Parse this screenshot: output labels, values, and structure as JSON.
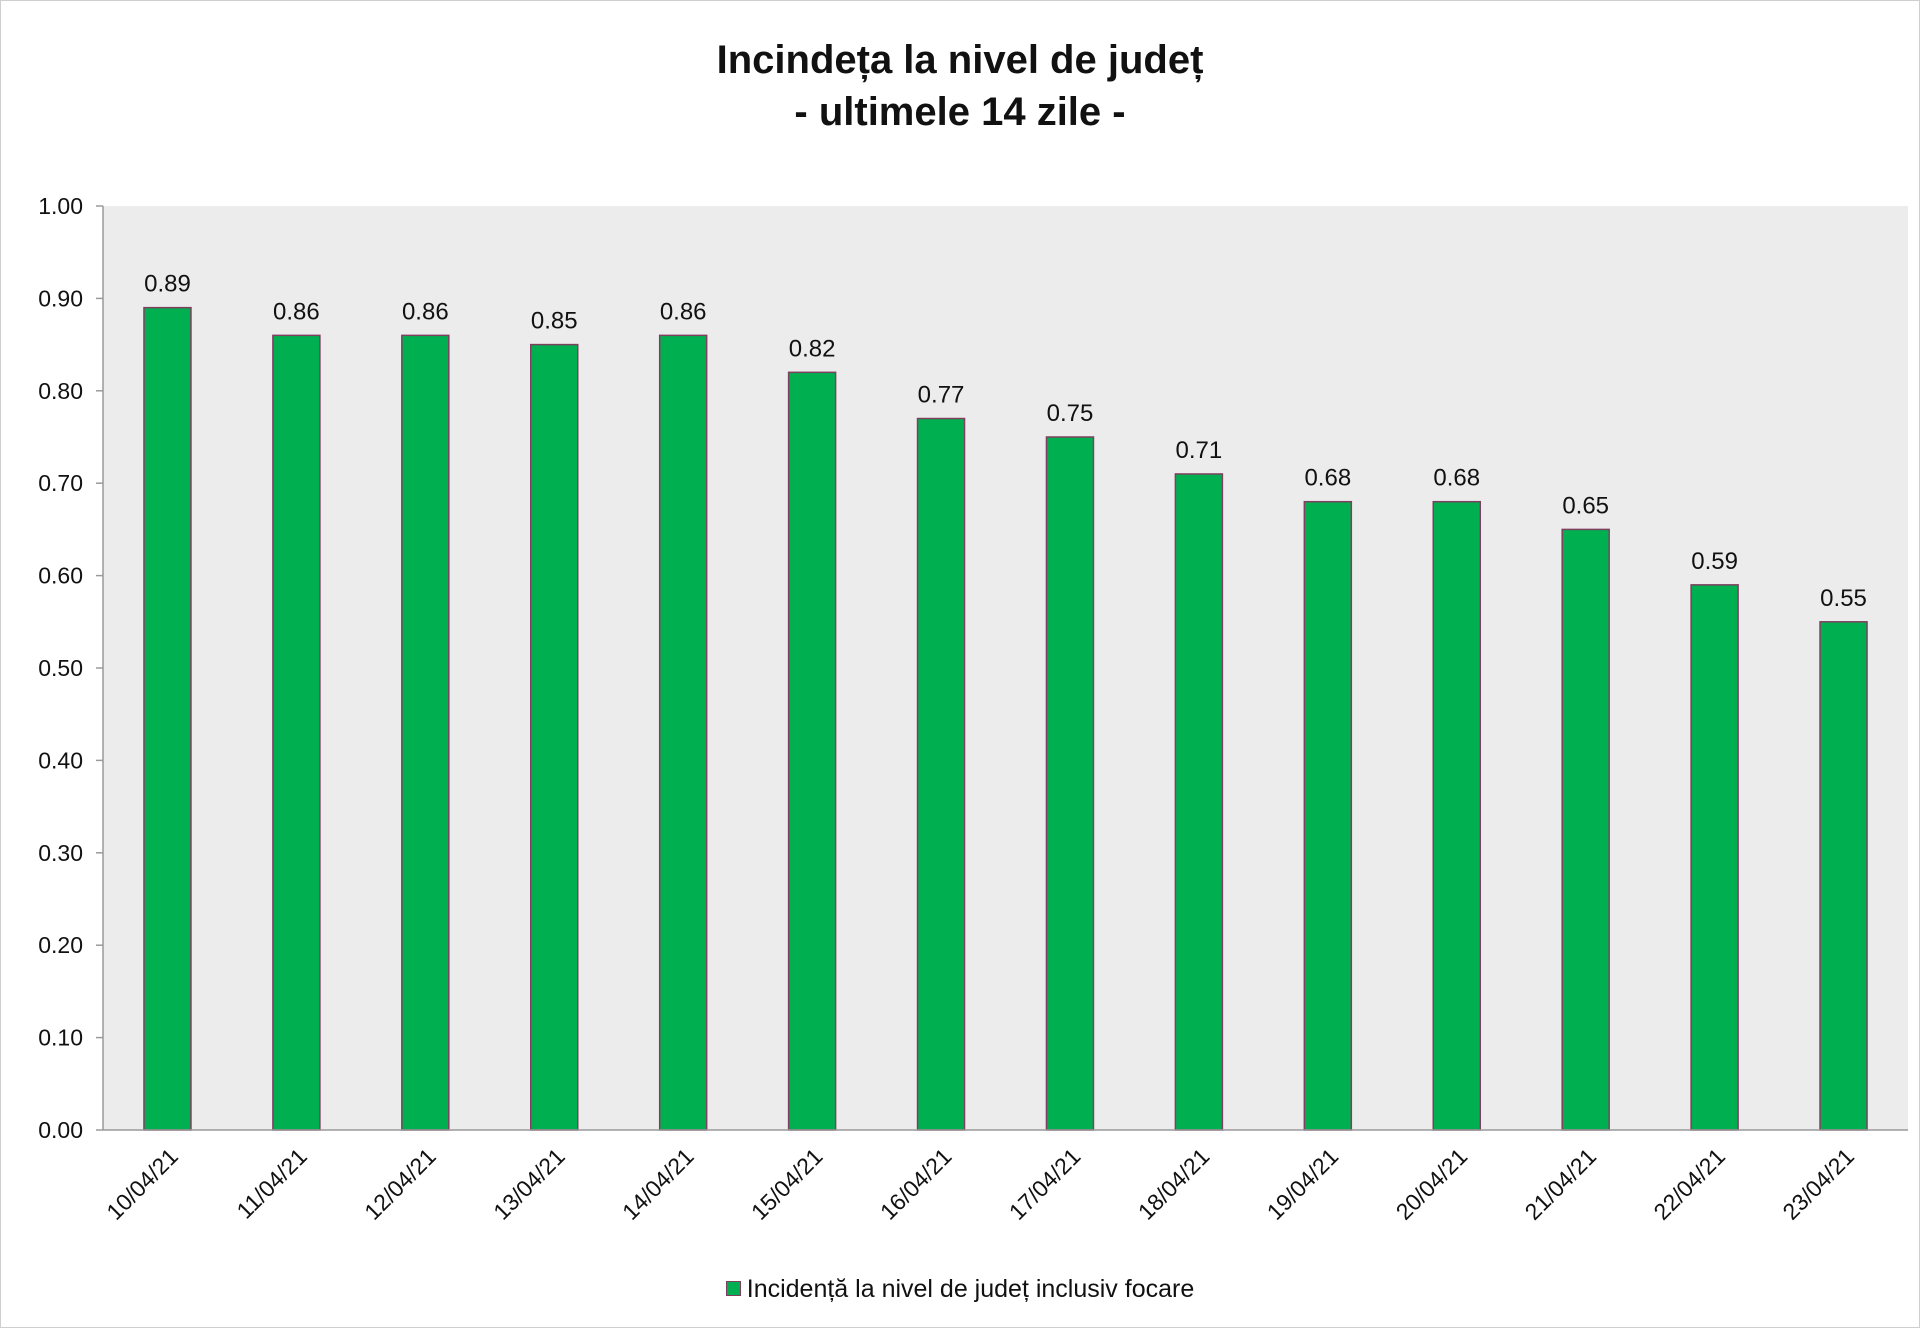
{
  "chart_data": {
    "type": "bar",
    "title": [
      "Incindeța la nivel de județ",
      "- ultimele 14 zile -"
    ],
    "categories": [
      "10/04/21",
      "11/04/21",
      "12/04/21",
      "13/04/21",
      "14/04/21",
      "15/04/21",
      "16/04/21",
      "17/04/21",
      "18/04/21",
      "19/04/21",
      "20/04/21",
      "21/04/21",
      "22/04/21",
      "23/04/21"
    ],
    "series": [
      {
        "name": "Incidență la nivel de județ inclusiv focare",
        "values": [
          0.89,
          0.86,
          0.86,
          0.85,
          0.86,
          0.82,
          0.77,
          0.75,
          0.71,
          0.68,
          0.68,
          0.65,
          0.59,
          0.55
        ],
        "color": "#00b050",
        "border_color": "#7f3f5f"
      }
    ],
    "data_labels": [
      "0.89",
      "0.86",
      "0.86",
      "0.85",
      "0.86",
      "0.82",
      "0.77",
      "0.75",
      "0.71",
      "0.68",
      "0.68",
      "0.65",
      "0.59",
      "0.55"
    ],
    "yticks": [
      "0.00",
      "0.10",
      "0.20",
      "0.30",
      "0.40",
      "0.50",
      "0.60",
      "0.70",
      "0.80",
      "0.90",
      "1.00"
    ],
    "ylim": [
      0,
      1
    ],
    "xlabel": "",
    "ylabel": "",
    "grid": false,
    "legend_position": "bottom",
    "plot_background": "#ececec"
  }
}
